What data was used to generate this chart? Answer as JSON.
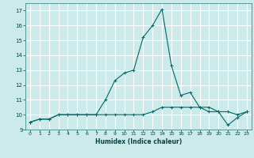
{
  "xlabel": "Humidex (Indice chaleur)",
  "bg_color": "#cceaea",
  "grid_color": "#ffffff",
  "line_color": "#006868",
  "xlim": [
    -0.5,
    23.5
  ],
  "ylim": [
    9,
    17.5
  ],
  "yticks": [
    9,
    10,
    11,
    12,
    13,
    14,
    15,
    16,
    17
  ],
  "xticks": [
    0,
    1,
    2,
    3,
    4,
    5,
    6,
    7,
    8,
    9,
    10,
    11,
    12,
    13,
    14,
    15,
    16,
    17,
    18,
    19,
    20,
    21,
    22,
    23
  ],
  "series1_x": [
    0,
    1,
    2,
    3,
    4,
    5,
    6,
    7,
    8,
    9,
    10,
    11,
    12,
    13,
    14,
    15,
    16,
    17,
    18,
    19,
    20,
    21,
    22,
    23
  ],
  "series1_y": [
    9.5,
    9.7,
    9.7,
    10.0,
    10.0,
    10.0,
    10.0,
    10.0,
    10.0,
    10.0,
    10.0,
    10.0,
    10.0,
    10.2,
    10.5,
    10.5,
    10.5,
    10.5,
    10.5,
    10.5,
    10.2,
    10.2,
    10.0,
    10.2
  ],
  "series2_x": [
    0,
    1,
    2,
    3,
    4,
    5,
    6,
    7,
    8,
    9,
    10,
    11,
    12,
    13,
    14,
    15,
    16,
    17,
    18,
    19,
    20,
    21,
    22,
    23
  ],
  "series2_y": [
    9.5,
    9.7,
    9.7,
    10.0,
    10.0,
    10.0,
    10.0,
    10.0,
    11.0,
    12.3,
    12.8,
    13.0,
    15.2,
    16.0,
    17.1,
    13.3,
    11.3,
    11.5,
    10.5,
    10.2,
    10.2,
    9.3,
    9.8,
    10.2
  ]
}
